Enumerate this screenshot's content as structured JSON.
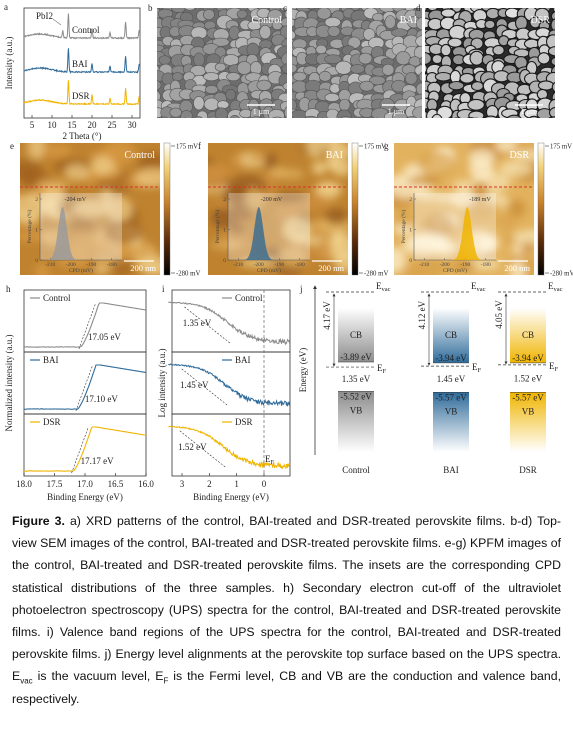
{
  "a": {
    "letter": "a",
    "ylabel": "Intensity (a.u.)",
    "xlabel": "2 Theta (°)",
    "xticks": [
      5,
      10,
      15,
      20,
      25,
      30
    ],
    "peak_label": "PbI2",
    "series": [
      {
        "name": "Control",
        "color": "#8c8c8c"
      },
      {
        "name": "BAI",
        "color": "#2f6b9a"
      },
      {
        "name": "DSR",
        "color": "#f0b400"
      }
    ]
  },
  "sem": [
    {
      "letter": "b",
      "label": "Control",
      "scale": "1 μm"
    },
    {
      "letter": "c",
      "label": "BAI",
      "scale": "1 μm"
    },
    {
      "letter": "d",
      "label": "DSR",
      "scale": "1 μm"
    }
  ],
  "kpfm": [
    {
      "letter": "e",
      "label": "Control",
      "scale": "200 nm",
      "cbar_max": "175 mV",
      "cbar_min": "-280 mV",
      "color": "#9a9a9a",
      "inset": {
        "ylabel": "Percentage (%)",
        "yticks": [
          0,
          1,
          2
        ],
        "xlabel": "CPD (mV)",
        "xticks": [
          -210,
          -200,
          -190,
          -180
        ],
        "peak": {
          "value": -204,
          "label": "-204 mV"
        }
      }
    },
    {
      "letter": "f",
      "label": "BAI",
      "scale": "200 nm",
      "cbar_max": "175 mV",
      "cbar_min": "-280 mV",
      "color": "#3e6d8f",
      "inset": {
        "ylabel": "Percentage (%)",
        "yticks": [
          0,
          1,
          2
        ],
        "xlabel": "CPD (mV)",
        "xticks": [
          -210,
          -200,
          -190,
          -180
        ],
        "peak": {
          "value": -200,
          "label": "-200 mV"
        }
      }
    },
    {
      "letter": "g",
      "label": "DSR",
      "scale": "200 nm",
      "cbar_max": "175 mV",
      "cbar_min": "-280 mV",
      "color": "#f0b400",
      "inset": {
        "ylabel": "Percentage (%)",
        "yticks": [
          0,
          1,
          2
        ],
        "xlabel": "CPD (mV)",
        "xticks": [
          -210,
          -200,
          -190,
          -180
        ],
        "peak": {
          "value": -189,
          "label": "-189 mV"
        }
      }
    }
  ],
  "h": {
    "letter": "h",
    "ylabel": "Normalized intensity (a.u.)",
    "xlabel": "Binding Energy (eV)",
    "xticks": [
      {
        "value": 18,
        "label": "18.0"
      },
      {
        "value": 17.5,
        "label": "17.5"
      },
      {
        "value": 17,
        "label": "17.0"
      },
      {
        "value": 16.5,
        "label": "16.5"
      },
      {
        "value": 16,
        "label": "16.0"
      }
    ],
    "series": [
      {
        "name": "Control",
        "color": "#8c8c8c",
        "cutoff": {
          "value": 17.05,
          "label": "17.05 eV"
        }
      },
      {
        "name": "BAI",
        "color": "#2f6b9a",
        "cutoff": {
          "value": 17.1,
          "label": "17.10 eV"
        }
      },
      {
        "name": "DSR",
        "color": "#f0b400",
        "cutoff": {
          "value": 17.17,
          "label": "17.17 eV"
        }
      }
    ]
  },
  "i": {
    "letter": "i",
    "ylabel": "Log intensity (a.u.)",
    "xlabel": "Binding Energy (eV)",
    "xticks": [
      3,
      2,
      1,
      0
    ],
    "fermi": {
      "main": "E",
      "sub": "F"
    },
    "series": [
      {
        "name": "Control",
        "color": "#8c8c8c",
        "edge": {
          "value": 1.35,
          "label": "1.35 eV"
        }
      },
      {
        "name": "BAI",
        "color": "#2f6b9a",
        "edge": {
          "value": 1.45,
          "label": "1.45 eV"
        }
      },
      {
        "name": "DSR",
        "color": "#f0b400",
        "edge": {
          "value": 1.52,
          "label": "1.52 eV"
        }
      }
    ]
  },
  "j": {
    "letter": "j",
    "ylabel": "Energy (eV)",
    "evac": {
      "main": "E",
      "sub": "vac"
    },
    "ef": {
      "main": "E",
      "sub": "F"
    },
    "cb": "CB",
    "vb": "VB",
    "columns": [
      {
        "name": "Control",
        "color": "#8c8c8c",
        "wf": {
          "value": 4.17,
          "label": "4.17 eV"
        },
        "cbm": {
          "value": -3.89,
          "label": "-3.89 eV"
        },
        "gap": {
          "value": 1.35,
          "label": "1.35 eV"
        },
        "vbm": {
          "value": -5.52,
          "label": "-5.52 eV"
        }
      },
      {
        "name": "BAI",
        "color": "#2f6b9a",
        "wf": {
          "value": 4.12,
          "label": "4.12 eV"
        },
        "cbm": {
          "value": -3.94,
          "label": "-3.94 eV"
        },
        "gap": {
          "value": 1.45,
          "label": "1.45 eV"
        },
        "vbm": {
          "value": -5.57,
          "label": "-5.57 eV"
        }
      },
      {
        "name": "DSR",
        "color": "#f0b400",
        "wf": {
          "value": 4.05,
          "label": "4.05 eV"
        },
        "cbm": {
          "value": -3.94,
          "label": "-3.94 eV"
        },
        "gap": {
          "value": 1.52,
          "label": "1.52 eV"
        },
        "vbm": {
          "value": -5.57,
          "label": "-5.57 eV"
        }
      }
    ]
  },
  "caption": {
    "label": "Figure 3.",
    "text": "a) XRD patterns of the control, BAI-treated and DSR-treated perovskite films. b-d) Top-view SEM images of the control, BAI-treated and DSR-treated perovskite films. e-g) KPFM images of the control, BAI-treated and DSR-treated perovskite films. The insets are the corresponding CPD statistical distributions of the three samples. h) Secondary electron cut-off of the ultraviolet photoelectron spectroscopy (UPS) spectra for the control, BAI-treated and DSR-treated perovskite films. i) Valence band regions of the UPS spectra for the control, BAI-treated and DSR-treated perovskite films. j) Energy level alignments at the perovskite top surface based on the UPS spectra.",
    "evac": {
      "main": "E",
      "sub": "vac"
    },
    "mid": "is the vacuum level,",
    "ef": {
      "main": "E",
      "sub": "F"
    },
    "end": "is the Fermi level, CB and VB are the conduction and valence band, respectively."
  }
}
